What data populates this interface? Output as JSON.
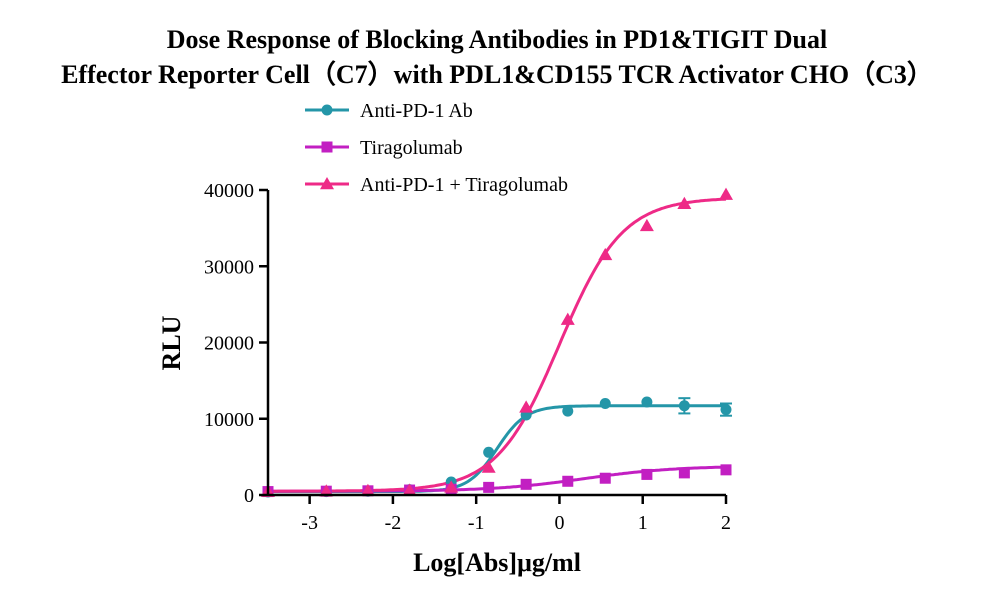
{
  "chart_data": {
    "type": "scatter",
    "title_lines": [
      "Dose Response of Blocking Antibodies in PD1&TIGIT Dual",
      "Effector Reporter Cell（C7）with PDL1&CD155 TCR Activator CHO（C3）"
    ],
    "xlabel": "Log[Abs]μg/ml",
    "ylabel": "RLU",
    "xlim": [
      -3.5,
      2
    ],
    "ylim": [
      0,
      40000
    ],
    "xticks": [
      -3,
      -2,
      -1,
      0,
      1,
      2
    ],
    "xtick_labels": [
      "-3",
      "-2",
      "-1",
      "0",
      "1",
      "2"
    ],
    "yticks": [
      0,
      10000,
      20000,
      30000,
      40000
    ],
    "ytick_labels": [
      "0",
      "10000",
      "20000",
      "30000",
      "40000"
    ],
    "legend_position": "top-left",
    "grid": false,
    "series": [
      {
        "name": "Anti-PD-1 Ab",
        "marker": "circle",
        "color": "#2496a8",
        "x": [
          -3.5,
          -2.8,
          -2.3,
          -1.8,
          -1.3,
          -0.85,
          -0.4,
          0.1,
          0.55,
          1.05,
          1.5,
          2.0
        ],
        "y": [
          400,
          450,
          500,
          700,
          1700,
          5600,
          10500,
          11000,
          12000,
          12200,
          11700,
          11200
        ],
        "yerr": [
          0,
          0,
          0,
          0,
          0,
          0,
          0,
          0,
          0,
          0,
          1000,
          800
        ],
        "fit": {
          "bottom": 450,
          "top": 11700,
          "logEC50": -0.75,
          "hill": 2.5
        }
      },
      {
        "name": "Tiragolumab",
        "marker": "square",
        "color": "#c21fc2",
        "x": [
          -3.5,
          -2.8,
          -2.3,
          -1.8,
          -1.3,
          -0.85,
          -0.4,
          0.1,
          0.55,
          1.05,
          1.5,
          2.0
        ],
        "y": [
          450,
          500,
          550,
          650,
          750,
          1000,
          1400,
          1800,
          2200,
          2700,
          2900,
          3300
        ],
        "yerr": [
          0,
          0,
          0,
          0,
          0,
          0,
          0,
          0,
          0,
          0,
          0,
          0
        ],
        "fit": {
          "bottom": 500,
          "top": 3800,
          "logEC50": 0.3,
          "hill": 0.8
        }
      },
      {
        "name": "Anti-PD-1 + Tiragolumab",
        "marker": "triangle",
        "color": "#ee2a87",
        "x": [
          -3.5,
          -2.8,
          -2.3,
          -1.8,
          -1.3,
          -0.85,
          -0.4,
          0.1,
          0.55,
          1.05,
          1.5,
          2.0
        ],
        "y": [
          450,
          500,
          550,
          600,
          1000,
          3600,
          11500,
          23000,
          31500,
          35300,
          38200,
          39400
        ],
        "yerr": [
          0,
          0,
          0,
          0,
          0,
          0,
          0,
          0,
          0,
          0,
          0,
          0
        ],
        "fit": {
          "bottom": 500,
          "top": 39000,
          "logEC50": 0.0,
          "hill": 1.15
        }
      }
    ]
  }
}
